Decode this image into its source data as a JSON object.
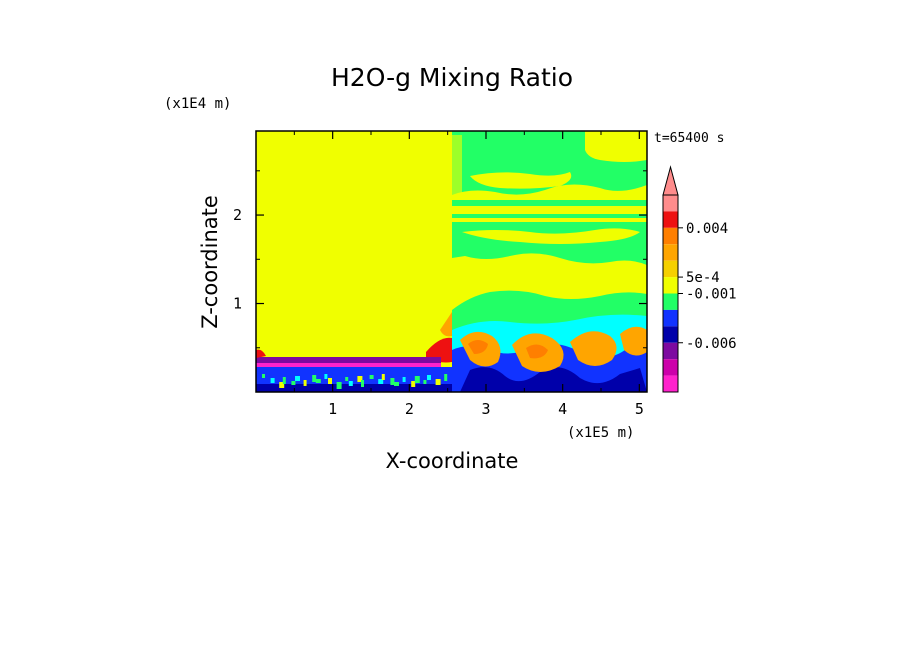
{
  "chart_data": {
    "type": "heatmap",
    "title": "H2O-g Mixing Ratio",
    "xlabel": "X-coordinate",
    "ylabel": "Z-coordinate",
    "x_unit": "(x1E5 m)",
    "y_unit": "(x1E4 m)",
    "time_label": "t=65400 s",
    "x_ticks": [
      "1",
      "2",
      "3",
      "4",
      "5"
    ],
    "x_tick_values": [
      1,
      2,
      3,
      4,
      5
    ],
    "y_ticks": [
      "1",
      "2"
    ],
    "y_tick_values": [
      1,
      2
    ],
    "xlim": [
      0,
      5.1
    ],
    "ylim": [
      0,
      2.95
    ],
    "colorbar": {
      "labels": [
        "0.004",
        "5e-4",
        "-0.001",
        "-0.006"
      ],
      "colors": [
        "#ff8c8c",
        "#ee1111",
        "#ff7f00",
        "#ffa500",
        "#f5d000",
        "#f0ff00",
        "#22ff66",
        "#1133ff",
        "#0000aa",
        "#7d0aa0",
        "#cc00aa",
        "#ff22cc"
      ],
      "arrow": "max"
    },
    "colors": {
      "yellow": "#f0ff00",
      "green": "#22ff66",
      "cyan": "#00ffff",
      "blue": "#1133ff",
      "navy": "#0000aa",
      "orange": "#ffa500",
      "red": "#ee1111",
      "magenta": "#ff22cc",
      "purple": "#7d0aa0"
    }
  }
}
